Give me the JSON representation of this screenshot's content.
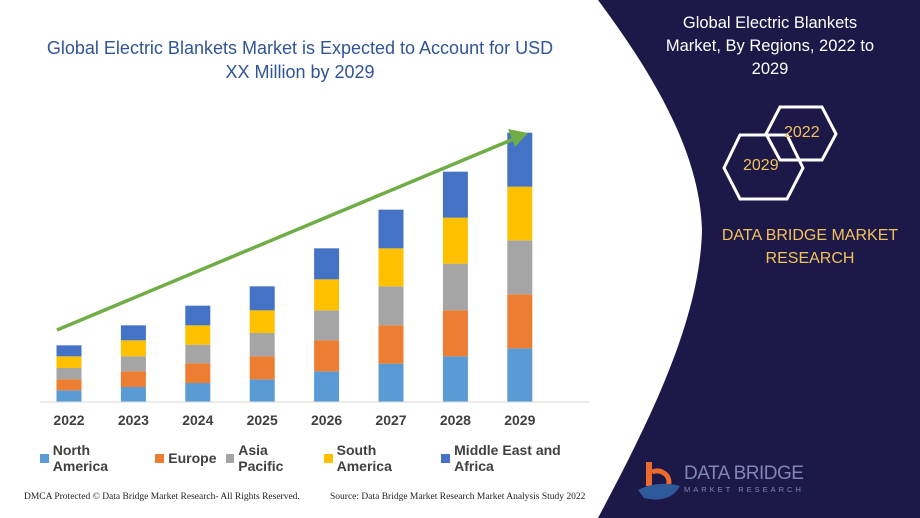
{
  "chart_data": {
    "type": "bar",
    "stacked": true,
    "title": "Global Electric Blankets Market is Expected to Account for USD XX Million by 2029",
    "categories": [
      "2022",
      "2023",
      "2024",
      "2025",
      "2026",
      "2027",
      "2028",
      "2029"
    ],
    "series": [
      {
        "name": "North America",
        "color": "#5B9BD5",
        "values": [
          3.5,
          4.5,
          5.7,
          6.8,
          9.2,
          11.5,
          13.7,
          16.1
        ]
      },
      {
        "name": "Europe",
        "color": "#ED7D31",
        "values": [
          3.3,
          4.7,
          5.9,
          6.9,
          9.3,
          11.5,
          13.8,
          16.2
        ]
      },
      {
        "name": "Asia Pacific",
        "color": "#A5A5A5",
        "values": [
          3.4,
          4.5,
          5.6,
          7.0,
          9.0,
          11.7,
          14.0,
          16.2
        ]
      },
      {
        "name": "South America",
        "color": "#FFC000",
        "values": [
          3.5,
          4.8,
          5.8,
          6.8,
          9.3,
          11.4,
          13.8,
          16.1
        ]
      },
      {
        "name": "Middle East and Africa",
        "color": "#4472C4",
        "values": [
          3.3,
          4.5,
          5.9,
          7.2,
          9.3,
          11.6,
          13.8,
          16.2
        ]
      }
    ],
    "ylim": [
      0,
      81
    ],
    "y_axis_shown": false,
    "grid": false,
    "legend_position": "bottom",
    "trend_arrow_color": "#70AD47"
  },
  "side": {
    "title": "Global Electric Blankets Market,  By Regions, 2022 to 2029",
    "hex_start": "2022",
    "hex_end": "2029",
    "brand": "DATA BRIDGE MARKET RESEARCH",
    "logo_text": "DATA BRIDGE",
    "logo_sub": "MARKET RESEARCH",
    "panel_color": "#1c1848",
    "accent_color": "#f2c25b"
  },
  "footer": {
    "dmca": "DMCA Protected © Data Bridge Market Research- All Rights Reserved.",
    "source": "Source: Data Bridge Market Research Market Analysis Study 2022"
  }
}
